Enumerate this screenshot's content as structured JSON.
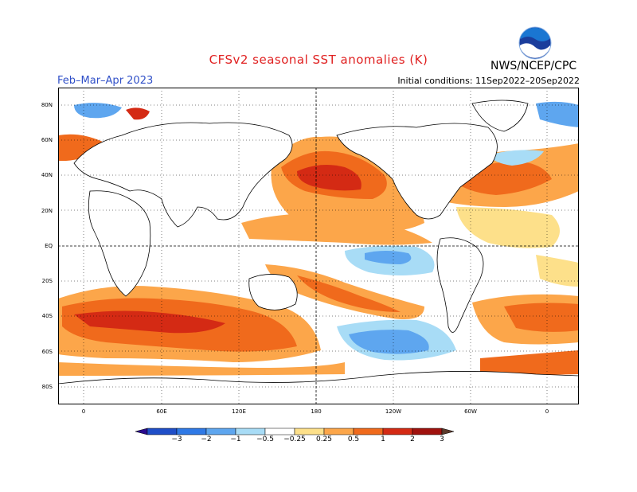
{
  "title": "CFSv2 seasonal SST anomalies (K)",
  "period": "Feb–Mar–Apr 2023",
  "initial_conditions": "Initial conditions: 11Sep2022–20Sep2022",
  "agency": "NWS/NCEP/CPC",
  "logo_text": "NOAA",
  "lat_labels": [
    "80N",
    "60N",
    "40N",
    "20N",
    "EQ",
    "20S",
    "40S",
    "60S",
    "80S"
  ],
  "lon_labels": [
    "0",
    "60E",
    "120E",
    "180",
    "120W",
    "60W",
    "0"
  ],
  "colorbar": {
    "labels": [
      "−3",
      "−2",
      "−1",
      "−0.5",
      "−0.25",
      "0.25",
      "0.5",
      "1",
      "2",
      "3"
    ],
    "colors": [
      "#2a0a8c",
      "#1f4ec8",
      "#2f79e6",
      "#5ea6ef",
      "#a8dcf6",
      "#ffffff",
      "#fde08a",
      "#fca64a",
      "#f06a1c",
      "#d42a14",
      "#a0120e",
      "#5c3a2c"
    ]
  }
}
